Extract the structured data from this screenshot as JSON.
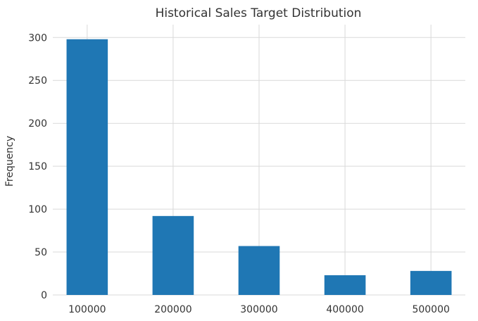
{
  "chart_data": {
    "type": "bar",
    "title": "Historical Sales Target Distribution",
    "xlabel": "",
    "ylabel": "Frequency",
    "x": [
      100000,
      200000,
      300000,
      400000,
      500000
    ],
    "values": [
      298,
      92,
      57,
      23,
      28
    ],
    "bin_width": 48000,
    "xlim": [
      60000,
      540000
    ],
    "ylim": [
      0,
      315
    ],
    "xticks": [
      100000,
      200000,
      300000,
      400000,
      500000
    ],
    "yticks": [
      0,
      50,
      100,
      150,
      200,
      250,
      300
    ],
    "grid": true,
    "legend": "none",
    "colors": {
      "bar": "#1f77b4",
      "grid": "#d9d9d9",
      "background": "#ffffff",
      "text": "#333333"
    }
  }
}
